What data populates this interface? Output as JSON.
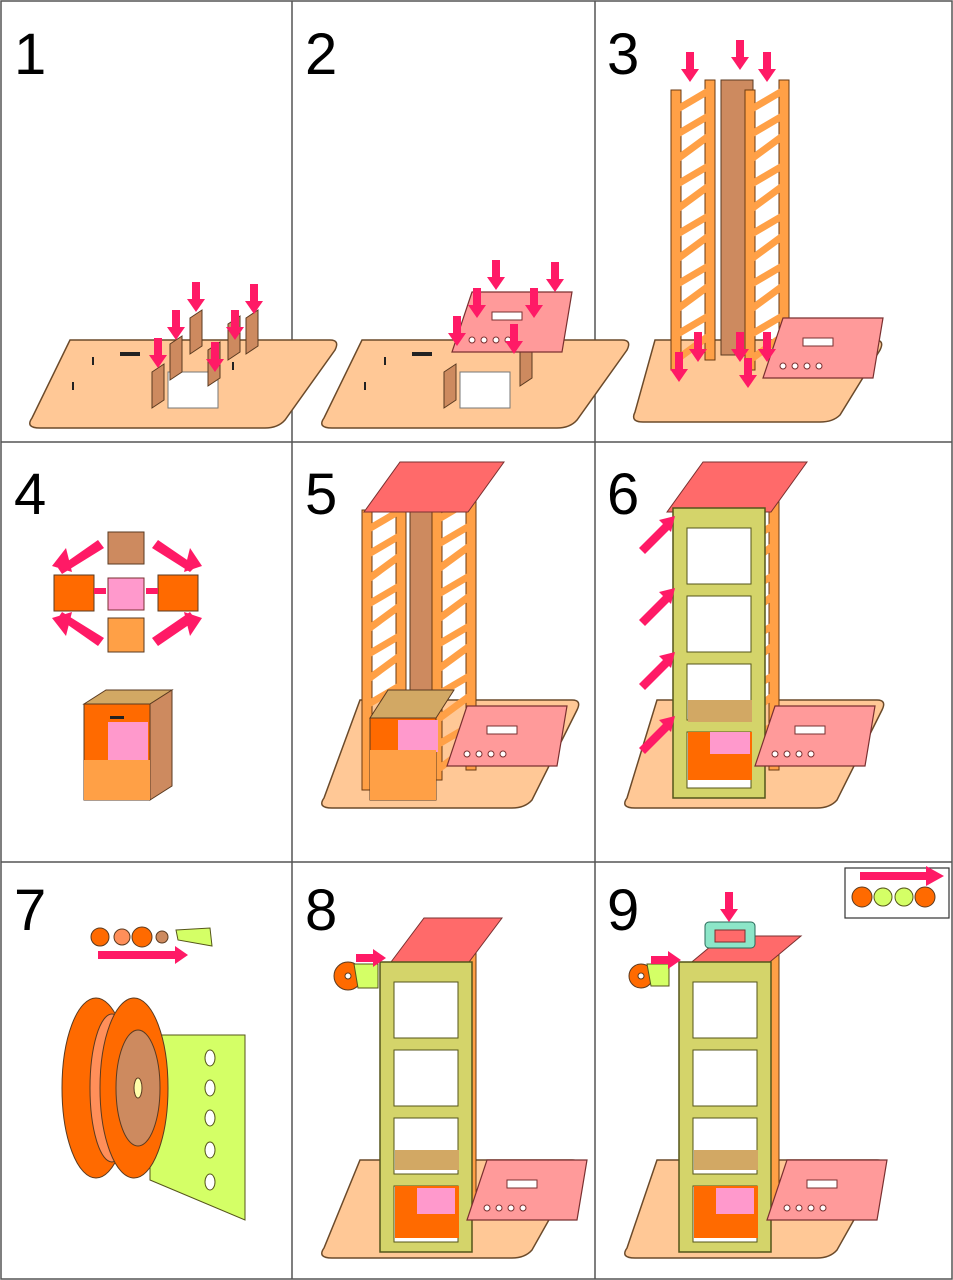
{
  "steps": [
    {
      "number": "1"
    },
    {
      "number": "2"
    },
    {
      "number": "3"
    },
    {
      "number": "4"
    },
    {
      "number": "5"
    },
    {
      "number": "6"
    },
    {
      "number": "7"
    },
    {
      "number": "8"
    },
    {
      "number": "9"
    }
  ],
  "colors": {
    "base": "#FFC896",
    "base_edge": "#C08A50",
    "brown_panel": "#CD8A5F",
    "orange_frame": "#FFA046",
    "pink_plate": "#FF9A9A",
    "red_top": "#FF6A6A",
    "olive_frame": "#D4D46A",
    "arrow": "#FF1A66",
    "spool_orange": "#FF6A00",
    "spool_light": "#FF8F5A",
    "bracket_green": "#D4FF66",
    "lightpink_panel": "#FF99CC",
    "box_tan": "#D2A864",
    "teal_part": "#8CE6C8"
  },
  "icons": [
    "down-arrow-icon",
    "right-arrow-icon",
    "diagonal-arrow-icon"
  ]
}
